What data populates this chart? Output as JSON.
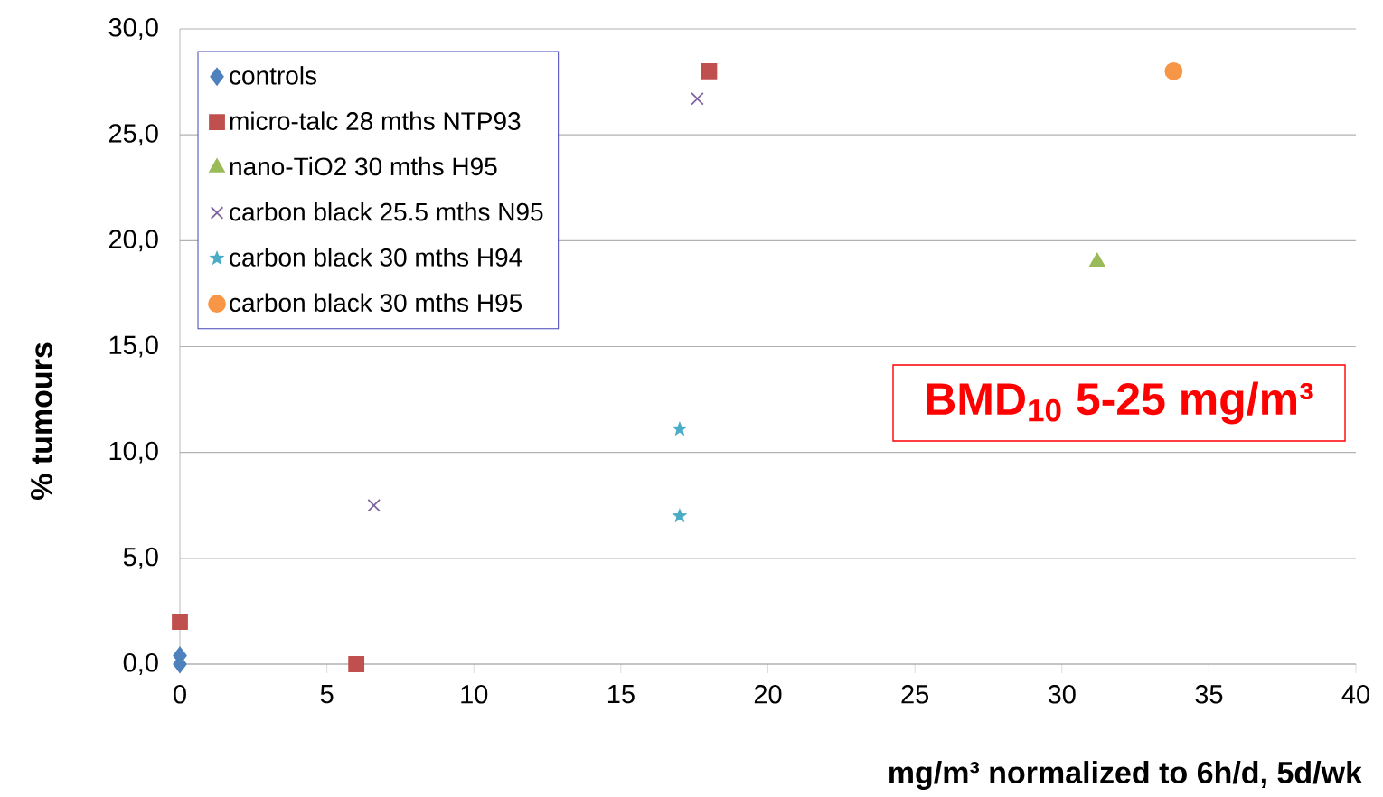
{
  "chart_data": {
    "type": "scatter",
    "xlabel": "mg/m³ normalized to 6h/d, 5d/wk",
    "ylabel": "% tumours",
    "annotations": [
      "BMD$_{10}$ 5-25 mg/m³"
    ],
    "xlim": [
      0,
      40
    ],
    "xticks": [
      0,
      5,
      10,
      15,
      20,
      25,
      30,
      35,
      40
    ],
    "ylim": [
      0,
      30
    ],
    "yticks": [
      {
        "value": 0,
        "label": "0,0"
      },
      {
        "value": 5,
        "label": "5,0"
      },
      {
        "value": 10,
        "label": "10,0"
      },
      {
        "value": 15,
        "label": "15,0"
      },
      {
        "value": 20,
        "label": "20,0"
      },
      {
        "value": 25,
        "label": "25,0"
      },
      {
        "value": 30,
        "label": "30,0"
      }
    ],
    "grid": "y",
    "legend": "top left",
    "series": [
      {
        "name": "controls",
        "color": "#4f81bd",
        "marker": "diamond",
        "x": [
          0,
          0
        ],
        "values": [
          0.4,
          0.0
        ]
      },
      {
        "name": "micro-talc 28 mths NTP93",
        "color": "#c0504d",
        "marker": "square",
        "x": [
          0,
          6.0,
          18.0
        ],
        "values": [
          2.0,
          0.0,
          28.0
        ]
      },
      {
        "name": "nano-TiO2 30 mths H95",
        "color": "#9bbb59",
        "marker": "triangle",
        "x": [
          31.2
        ],
        "values": [
          19.0
        ]
      },
      {
        "name": "carbon black 25.5 mths N95",
        "color": "#8064a2",
        "marker": "cross",
        "x": [
          6.6,
          17.6
        ],
        "values": [
          7.5,
          26.7
        ]
      },
      {
        "name": "carbon black 30 mths H94",
        "color": "#4bacc6",
        "marker": "star",
        "x": [
          17.0,
          17.0
        ],
        "values": [
          11.1,
          7.0
        ]
      },
      {
        "name": "carbon black 30 mths H95",
        "color": "#f79646",
        "marker": "circle",
        "x": [
          33.8
        ],
        "values": [
          28.0
        ]
      }
    ]
  }
}
